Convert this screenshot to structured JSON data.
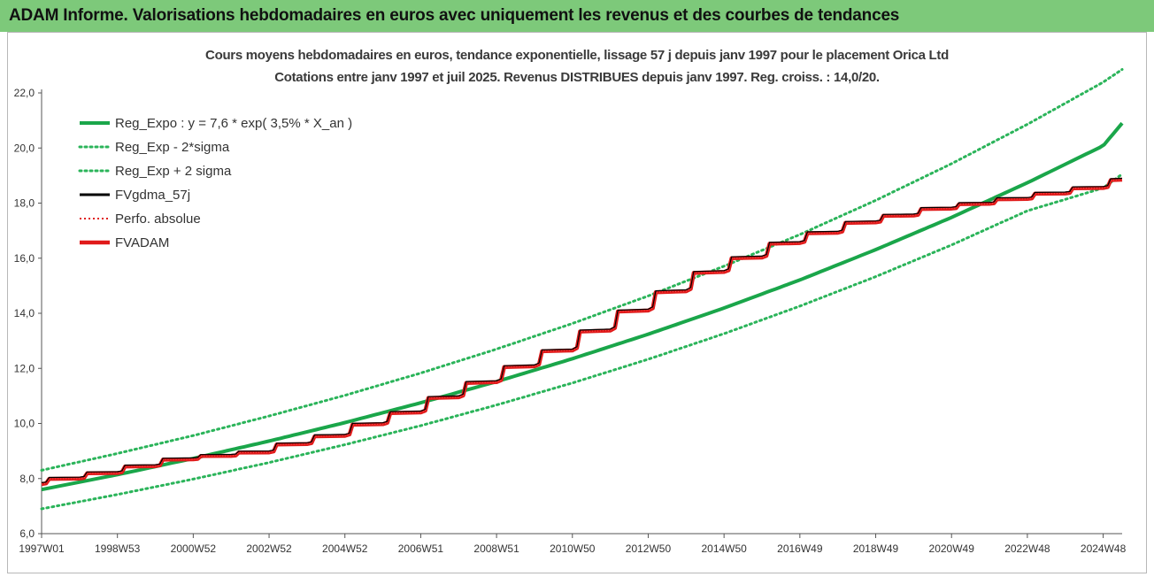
{
  "header": {
    "title": "ADAM Informe. Valorisations hebdomadaires en euros avec uniquement les revenus et des courbes de tendances"
  },
  "chart_data": {
    "type": "line",
    "title": "Cours moyens hebdomadaires en euros, tendance exponentielle, lissage 57 j depuis janv 1997 pour le placement Orica Ltd",
    "subtitle": "Cotations entre janv 1997 et juil 2025. Revenus DISTRIBUES depuis janv 1997. Reg. croiss. : 14,0/20.",
    "xlabel": "",
    "ylabel": "",
    "ylim": [
      6,
      22
    ],
    "yticks": [
      "6,0",
      "8,0",
      "10,0",
      "12,0",
      "14,0",
      "16,0",
      "18,0",
      "20,0",
      "22,0"
    ],
    "xticks": [
      "1997W01",
      "1998W53",
      "2000W52",
      "2002W52",
      "2004W52",
      "2006W51",
      "2008W51",
      "2010W50",
      "2012W50",
      "2014W50",
      "2016W49",
      "2018W49",
      "2020W49",
      "2022W48",
      "2024W48"
    ],
    "x_years": [
      1997,
      1999,
      2001,
      2003,
      2005,
      2007,
      2009,
      2011,
      2013,
      2015,
      2017,
      2019,
      2021,
      2023,
      2025,
      2025.5
    ],
    "legend_position": "top-left",
    "grid": false,
    "series": [
      {
        "name": "Reg_Expo : y = 7,6 * exp( 3,5% *  X_an )",
        "color": "#1aa64a",
        "style": "solid",
        "values": [
          7.6,
          8.14,
          8.73,
          9.36,
          10.03,
          10.75,
          11.52,
          12.35,
          13.24,
          14.19,
          15.21,
          16.31,
          17.48,
          18.74,
          20.08,
          20.9
        ]
      },
      {
        "name": "Reg_Exp - 2*sigma",
        "color": "#2bb45a",
        "style": "dotted",
        "values": [
          6.9,
          7.42,
          7.98,
          8.58,
          9.23,
          9.92,
          10.67,
          11.47,
          12.33,
          13.26,
          14.26,
          15.33,
          16.48,
          17.72,
          18.55,
          19.05
        ]
      },
      {
        "name": "Reg_Exp + 2 sigma",
        "color": "#2bb45a",
        "style": "dotted",
        "values": [
          8.3,
          8.91,
          9.56,
          10.27,
          11.02,
          11.83,
          12.7,
          13.63,
          14.63,
          15.71,
          16.86,
          18.1,
          19.43,
          20.86,
          22.39,
          22.85
        ]
      },
      {
        "name": "FVgdma_57j",
        "color": "#000000",
        "style": "solid",
        "values": [
          7.8,
          8.2,
          8.7,
          8.95,
          9.55,
          10.4,
          11.5,
          12.65,
          14.1,
          15.5,
          16.55,
          17.3,
          17.8,
          18.15,
          18.55,
          18.85
        ]
      },
      {
        "name": "Perfo. absolue",
        "color": "#e02020",
        "style": "dotted",
        "values": [
          7.8,
          8.2,
          8.7,
          8.95,
          9.55,
          10.4,
          11.5,
          12.65,
          14.1,
          15.5,
          16.55,
          17.3,
          17.8,
          18.15,
          18.55,
          18.85
        ]
      },
      {
        "name": "FVADAM",
        "color": "#e01a1a",
        "style": "solid",
        "values": [
          7.8,
          8.2,
          8.7,
          8.95,
          9.55,
          10.4,
          11.5,
          12.65,
          14.1,
          15.5,
          16.55,
          17.3,
          17.8,
          18.15,
          18.55,
          18.85
        ]
      }
    ]
  }
}
